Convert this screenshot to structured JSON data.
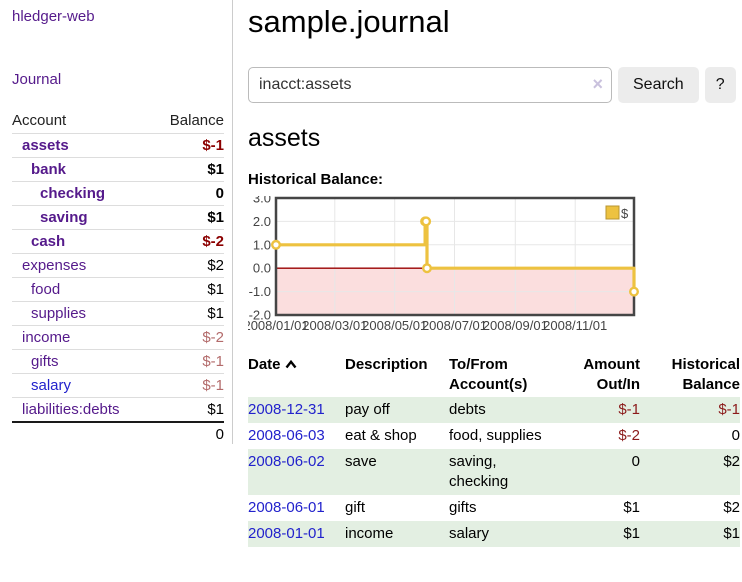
{
  "app": {
    "brand": "hledger-web",
    "nav_journal": "Journal"
  },
  "sidebar": {
    "header": {
      "account": "Account",
      "balance": "Balance"
    },
    "accounts": [
      {
        "name": "assets",
        "indent": 1,
        "bold": true,
        "balance": "$-1",
        "balance_class": "neg-strong"
      },
      {
        "name": "bank",
        "indent": 2,
        "bold": true,
        "balance": "$1",
        "balance_class": ""
      },
      {
        "name": "checking",
        "indent": 3,
        "bold": true,
        "balance": "0",
        "balance_class": ""
      },
      {
        "name": "saving",
        "indent": 3,
        "bold": true,
        "balance": "$1",
        "balance_class": ""
      },
      {
        "name": "cash",
        "indent": 2,
        "bold": true,
        "balance": "$-2",
        "balance_class": "neg-strong"
      },
      {
        "name": "expenses",
        "indent": 1,
        "bold": false,
        "balance": "$2",
        "balance_class": ""
      },
      {
        "name": "food",
        "indent": 2,
        "bold": false,
        "balance": "$1",
        "balance_class": ""
      },
      {
        "name": "supplies",
        "indent": 2,
        "bold": false,
        "balance": "$1",
        "balance_class": ""
      },
      {
        "name": "income",
        "indent": 1,
        "bold": false,
        "balance": "$-2",
        "balance_class": "neg-muted"
      },
      {
        "name": "gifts",
        "indent": 2,
        "bold": false,
        "balance": "$-1",
        "balance_class": "neg-muted"
      },
      {
        "name": "salary",
        "indent": 2,
        "bold": false,
        "balance": "$-1",
        "balance_class": "neg-muted",
        "unvisited": true
      },
      {
        "name": "liabilities:debts",
        "indent": 1,
        "bold": false,
        "balance": "$1",
        "balance_class": ""
      }
    ],
    "total": "0"
  },
  "header": {
    "title": "sample.journal"
  },
  "search": {
    "value": "inacct:assets",
    "clear_icon": "×",
    "button": "Search",
    "help_button": "?"
  },
  "account_page": {
    "title": "assets",
    "chart_label": "Historical Balance:"
  },
  "chart_data": {
    "type": "line",
    "title": "Historical Balance",
    "legend": {
      "position": "top-right",
      "label": "$"
    },
    "series": [
      {
        "name": "$",
        "color": "#edc240",
        "steps": true,
        "points": [
          {
            "date": "2008-01-01",
            "value": 1
          },
          {
            "date": "2008-06-01",
            "value": 2
          },
          {
            "date": "2008-06-02",
            "value": 2
          },
          {
            "date": "2008-06-03",
            "value": 0
          },
          {
            "date": "2008-12-31",
            "value": -1
          }
        ]
      }
    ],
    "ylim": [
      -2,
      3
    ],
    "yticks": [
      "3.0",
      "2.0",
      "1.0",
      "0.0",
      "-1.0",
      "-2.0"
    ],
    "xticks": [
      {
        "label": "2008/01/01",
        "date": "2008-01-01"
      },
      {
        "label": "2008/03/01",
        "date": "2008-03-01"
      },
      {
        "label": "2008/05/01",
        "date": "2008-05-01"
      },
      {
        "label": "2008/07/01",
        "date": "2008-07-01"
      },
      {
        "label": "2008/09/01",
        "date": "2008-09-01"
      },
      {
        "label": "2008/11/01",
        "date": "2008-11-01"
      }
    ],
    "x_range": [
      "2008-01-01",
      "2008-12-31"
    ],
    "grid": true,
    "grid_color": "#e7e7e7",
    "negative_region_fill": "#fbdede",
    "zero_line_color": "#990000",
    "plot_border_color": "#454545"
  },
  "register": {
    "columns": [
      {
        "label": "Date",
        "align": "left",
        "sorted": "asc"
      },
      {
        "label": "Description",
        "align": "left"
      },
      {
        "label": "To/From Account(s)",
        "align": "left"
      },
      {
        "label": "Amount Out/In",
        "align": "right"
      },
      {
        "label": "Historical Balance",
        "align": "right"
      }
    ],
    "rows": [
      {
        "date": "2008-12-31",
        "description": "pay off",
        "accounts": "debts",
        "amount": "$-1",
        "amount_neg": true,
        "balance": "$-1",
        "balance_neg": true,
        "green": true
      },
      {
        "date": "2008-06-03",
        "description": "eat & shop",
        "accounts": "food, supplies",
        "amount": "$-2",
        "amount_neg": true,
        "balance": "0",
        "balance_neg": false,
        "green": false
      },
      {
        "date": "2008-06-02",
        "description": "save",
        "accounts": "saving,\nchecking",
        "amount": "0",
        "amount_neg": false,
        "balance": "$2",
        "balance_neg": false,
        "green": true
      },
      {
        "date": "2008-06-01",
        "description": "gift",
        "accounts": "gifts",
        "amount": "$1",
        "amount_neg": false,
        "balance": "$2",
        "balance_neg": false,
        "green": false
      },
      {
        "date": "2008-01-01",
        "description": "income",
        "accounts": "salary",
        "amount": "$1",
        "amount_neg": false,
        "balance": "$1",
        "balance_neg": false,
        "green": true
      }
    ]
  }
}
